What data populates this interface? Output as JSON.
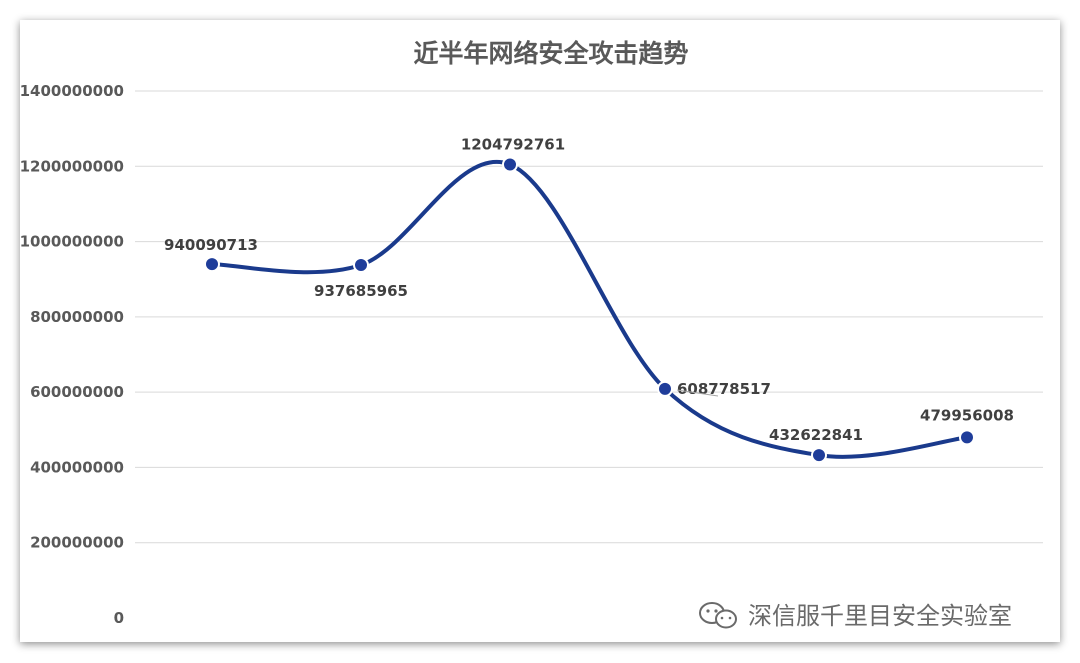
{
  "chart_data": {
    "type": "line",
    "title": "近半年网络安全攻击趋势",
    "xlabel": "",
    "ylabel": "",
    "categories": [
      "",
      "",
      "",
      "",
      "",
      ""
    ],
    "series": [
      {
        "values": [
          940090713,
          937685965,
          1204792761,
          608778517,
          432622841,
          479956008
        ]
      }
    ],
    "data_labels": [
      "940090713",
      "937685965",
      "1204792761",
      "608778517",
      "432622841",
      "479956008"
    ],
    "ylim": [
      0,
      1400000000
    ],
    "yticks": [
      0,
      200000000,
      400000000,
      600000000,
      800000000,
      1000000000,
      1200000000,
      1400000000
    ],
    "ytick_labels": [
      "0",
      "200000000",
      "400000000",
      "600000000",
      "800000000",
      "1000000000",
      "1200000000",
      "1400000000"
    ],
    "smooth": true,
    "grid": true,
    "legend": "none",
    "colors": {
      "line": "#1a3a8c",
      "marker_fill": "#1f3d9a",
      "marker_stroke": "#ffffff"
    }
  },
  "watermark": {
    "text": "深信服千里目安全实验室",
    "icon": "wechat-icon"
  }
}
